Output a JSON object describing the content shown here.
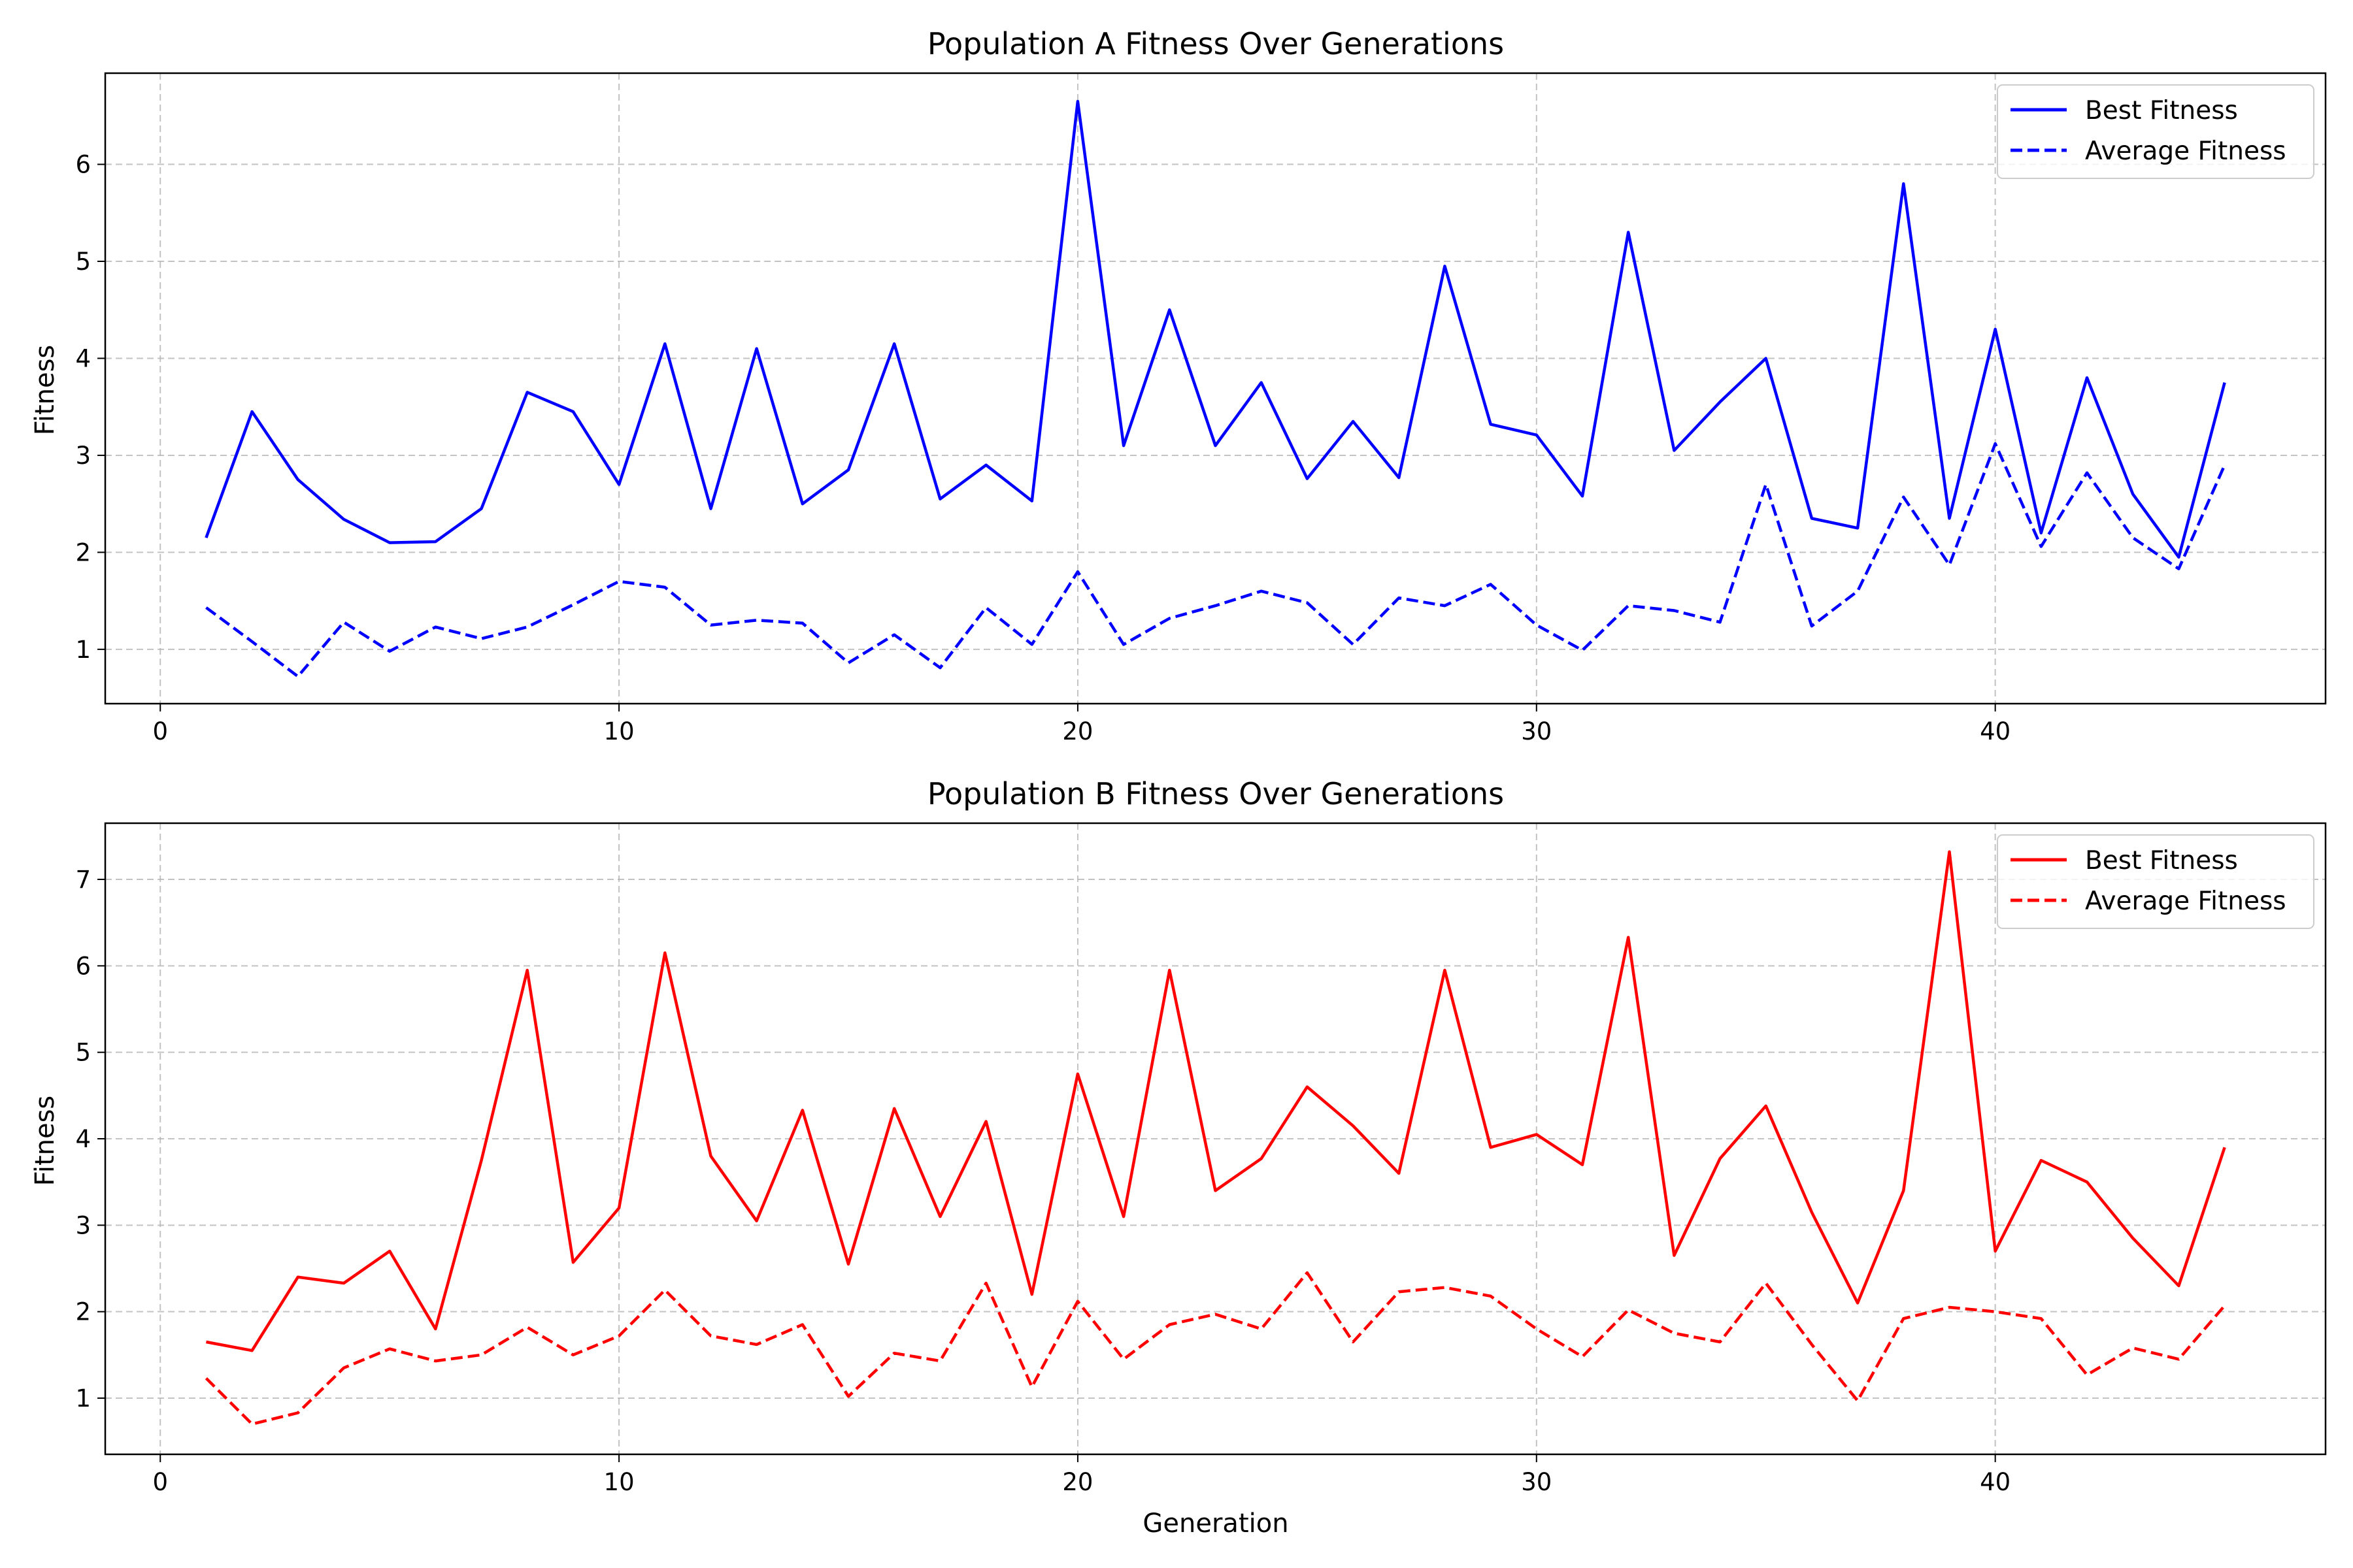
{
  "chart_data": [
    {
      "type": "line",
      "title": "Population A Fitness Over Generations",
      "xlabel": "",
      "ylabel": "Fitness",
      "xlim": [
        -1.2,
        47.2
      ],
      "ylim": [
        0.44,
        6.94
      ],
      "xticks": [
        0,
        10,
        20,
        30,
        40
      ],
      "yticks": [
        1,
        2,
        3,
        4,
        5,
        6
      ],
      "grid": true,
      "legend_position": "upper right",
      "x": [
        1,
        2,
        3,
        4,
        5,
        6,
        7,
        8,
        9,
        10,
        11,
        12,
        13,
        14,
        15,
        16,
        17,
        18,
        19,
        20,
        21,
        22,
        23,
        24,
        25,
        26,
        27,
        28,
        29,
        30,
        31,
        32,
        33,
        34,
        35,
        36,
        37,
        38,
        39,
        40,
        41,
        42,
        43,
        44,
        45
      ],
      "series": [
        {
          "name": "Best Fitness",
          "color": "#0000ff",
          "style": "solid",
          "values": [
            2.15,
            3.45,
            2.75,
            2.34,
            2.1,
            2.11,
            2.45,
            3.65,
            3.45,
            2.7,
            4.15,
            2.45,
            4.1,
            2.5,
            2.85,
            4.15,
            2.55,
            2.9,
            2.53,
            6.65,
            3.1,
            4.5,
            3.1,
            3.75,
            2.76,
            3.35,
            2.77,
            4.95,
            3.32,
            3.21,
            2.58,
            5.3,
            3.05,
            3.55,
            4.0,
            2.35,
            2.25,
            5.8,
            2.35,
            4.3,
            2.2,
            3.8,
            2.6,
            1.95,
            3.75
          ]
        },
        {
          "name": "Average Fitness",
          "color": "#0000ff",
          "style": "dashed",
          "values": [
            1.43,
            1.08,
            0.72,
            1.28,
            0.98,
            1.23,
            1.11,
            1.23,
            1.46,
            1.7,
            1.64,
            1.25,
            1.3,
            1.27,
            0.86,
            1.15,
            0.81,
            1.43,
            1.05,
            1.8,
            1.05,
            1.32,
            1.45,
            1.6,
            1.48,
            1.05,
            1.53,
            1.45,
            1.67,
            1.25,
            0.99,
            1.45,
            1.4,
            1.28,
            2.7,
            1.24,
            1.6,
            2.57,
            1.87,
            3.12,
            2.06,
            2.82,
            2.15,
            1.83,
            2.9
          ]
        }
      ]
    },
    {
      "type": "line",
      "title": "Population B Fitness Over Generations",
      "xlabel": "Generation",
      "ylabel": "Fitness",
      "xlim": [
        -1.2,
        47.2
      ],
      "ylim": [
        0.35,
        7.65
      ],
      "xticks": [
        0,
        10,
        20,
        30,
        40
      ],
      "yticks": [
        1,
        2,
        3,
        4,
        5,
        6,
        7
      ],
      "grid": true,
      "legend_position": "upper right",
      "x": [
        1,
        2,
        3,
        4,
        5,
        6,
        7,
        8,
        9,
        10,
        11,
        12,
        13,
        14,
        15,
        16,
        17,
        18,
        19,
        20,
        21,
        22,
        23,
        24,
        25,
        26,
        27,
        28,
        29,
        30,
        31,
        32,
        33,
        34,
        35,
        36,
        37,
        38,
        39,
        40,
        41,
        42,
        43,
        44,
        45
      ],
      "series": [
        {
          "name": "Best Fitness",
          "color": "#ff0000",
          "style": "solid",
          "values": [
            1.65,
            1.55,
            2.4,
            2.33,
            2.7,
            1.8,
            3.75,
            5.95,
            2.57,
            3.2,
            6.15,
            3.8,
            3.05,
            4.33,
            2.55,
            4.35,
            3.1,
            4.2,
            2.2,
            4.75,
            3.1,
            5.95,
            3.4,
            3.77,
            4.6,
            4.15,
            3.6,
            5.95,
            3.9,
            4.05,
            3.7,
            6.33,
            2.65,
            3.77,
            4.38,
            3.15,
            2.1,
            3.4,
            7.32,
            2.7,
            3.75,
            3.5,
            2.85,
            2.3,
            3.9
          ]
        },
        {
          "name": "Average Fitness",
          "color": "#ff0000",
          "style": "dashed",
          "values": [
            1.23,
            0.7,
            0.83,
            1.35,
            1.57,
            1.43,
            1.5,
            1.82,
            1.5,
            1.72,
            2.25,
            1.72,
            1.62,
            1.85,
            1.02,
            1.52,
            1.43,
            2.33,
            1.13,
            2.12,
            1.45,
            1.85,
            1.97,
            1.8,
            2.45,
            1.65,
            2.23,
            2.28,
            2.18,
            1.8,
            1.48,
            2.02,
            1.75,
            1.65,
            2.33,
            1.62,
            0.97,
            1.92,
            2.05,
            2.0,
            1.92,
            1.27,
            1.58,
            1.45,
            2.07
          ]
        }
      ]
    }
  ]
}
